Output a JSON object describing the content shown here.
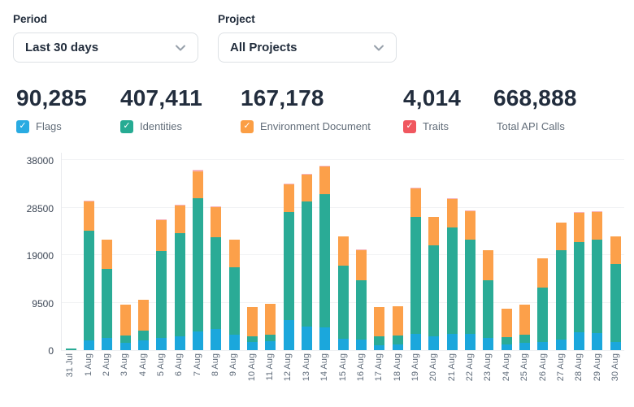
{
  "controls": {
    "period": {
      "label": "Period",
      "value": "Last 30 days"
    },
    "project": {
      "label": "Project",
      "value": "All Projects"
    }
  },
  "stats": [
    {
      "value": "90,285",
      "label": "Flags",
      "has_checkbox": true,
      "checkbox_color": "#29abe2"
    },
    {
      "value": "407,411",
      "label": "Identities",
      "has_checkbox": true,
      "checkbox_color": "#26ab93"
    },
    {
      "value": "167,178",
      "label": "Environment Document",
      "has_checkbox": true,
      "checkbox_color": "#fb9e44"
    },
    {
      "value": "4,014",
      "label": "Traits",
      "has_checkbox": true,
      "checkbox_color": "#f0575f"
    },
    {
      "value": "668,888",
      "label": "Total API Calls",
      "has_checkbox": false,
      "checkbox_color": ""
    }
  ],
  "icons": {
    "checkmark": "✓"
  },
  "chart_data": {
    "type": "bar",
    "stacked": true,
    "title": "",
    "xlabel": "",
    "ylabel": "",
    "ylim": [
      0,
      38000
    ],
    "yticks": [
      0,
      9500,
      19000,
      28500,
      38000
    ],
    "grid": true,
    "categories": [
      "31 Jul",
      "1 Aug",
      "2 Aug",
      "3 Aug",
      "4 Aug",
      "5 Aug",
      "6 Aug",
      "7 Aug",
      "8 Aug",
      "9 Aug",
      "10 Aug",
      "11 Aug",
      "12 Aug",
      "13 Aug",
      "14 Aug",
      "15 Aug",
      "16 Aug",
      "17 Aug",
      "18 Aug",
      "19 Aug",
      "20 Aug",
      "21 Aug",
      "22 Aug",
      "23 Aug",
      "24 Aug",
      "25 Aug",
      "26 Aug",
      "27 Aug",
      "28 Aug",
      "29 Aug",
      "30 Aug"
    ],
    "series": [
      {
        "name": "Flags",
        "color": "#1ba7dc",
        "values": [
          0,
          2000,
          2400,
          1500,
          2000,
          2500,
          2700,
          3700,
          4300,
          3100,
          1600,
          1850,
          6000,
          4700,
          4550,
          2300,
          2150,
          900,
          1170,
          3300,
          2800,
          3200,
          3300,
          2500,
          1170,
          1430,
          1600,
          2150,
          3650,
          3350,
          1600
        ]
      },
      {
        "name": "Identities",
        "color": "#2aab96",
        "values": [
          250,
          22000,
          13800,
          1450,
          1900,
          17300,
          20600,
          26600,
          18350,
          13500,
          1200,
          1250,
          21600,
          25000,
          26650,
          14600,
          11850,
          1780,
          1780,
          23350,
          18150,
          21350,
          18900,
          11500,
          1500,
          1680,
          10900,
          17900,
          18050,
          18750,
          15550
        ]
      },
      {
        "name": "Environment Document",
        "color": "#fca04a",
        "values": [
          0,
          5900,
          5900,
          6100,
          6250,
          6200,
          5550,
          5400,
          6000,
          5600,
          5900,
          6150,
          5550,
          5400,
          5500,
          5900,
          6050,
          5800,
          5770,
          5700,
          5750,
          5650,
          5750,
          5950,
          5670,
          5930,
          5800,
          5550,
          5850,
          5500,
          5500
        ]
      },
      {
        "name": "Traits",
        "color": "#f6b3bc",
        "values": [
          0,
          100,
          0,
          0,
          0,
          100,
          150,
          300,
          150,
          0,
          0,
          0,
          150,
          200,
          200,
          0,
          100,
          0,
          0,
          200,
          0,
          100,
          100,
          0,
          0,
          0,
          0,
          0,
          200,
          100,
          0
        ]
      }
    ]
  }
}
